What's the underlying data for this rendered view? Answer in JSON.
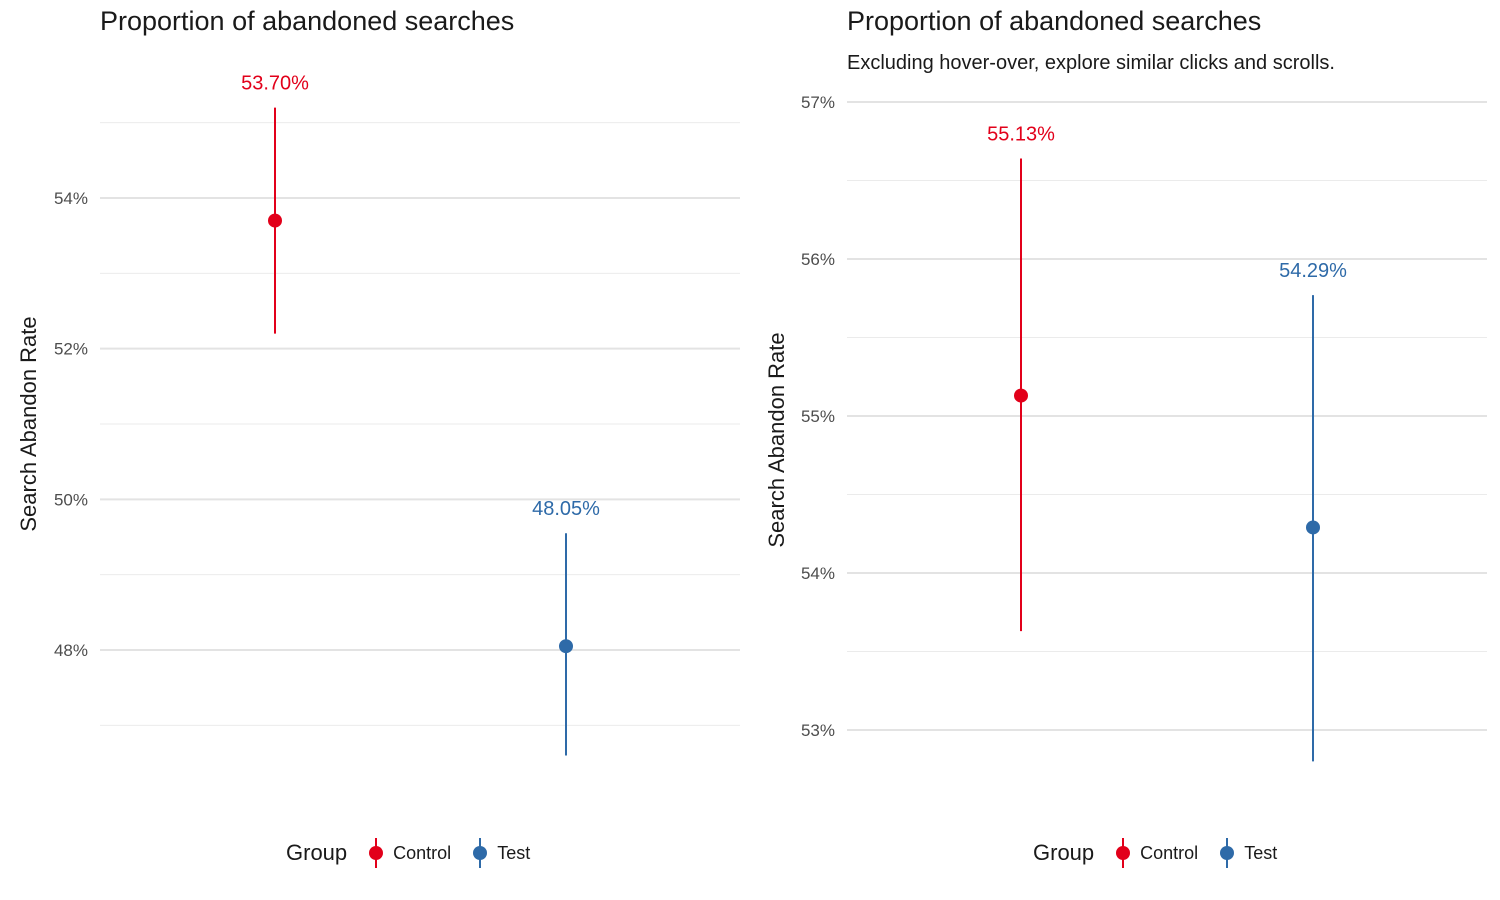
{
  "chart_data": [
    {
      "type": "scatter",
      "title": "Proportion of abandoned searches",
      "subtitle": "",
      "xlabel": "",
      "ylabel": "Search Abandon Rate",
      "ylim": [
        46.6,
        55.2
      ],
      "y_ticks": [
        "48%",
        "50%",
        "52%",
        "54%"
      ],
      "y_tick_values": [
        48,
        50,
        52,
        54
      ],
      "grid": true,
      "legend_title": "Group",
      "legend_position": "bottom",
      "categories": [
        "Control",
        "Test"
      ],
      "series": [
        {
          "name": "Control",
          "color": "#e2001a",
          "value": 53.7,
          "ci": [
            52.2,
            55.2
          ],
          "label": "53.70%"
        },
        {
          "name": "Test",
          "color": "#2e6aa8",
          "value": 48.05,
          "ci": [
            46.6,
            49.55
          ],
          "label": "48.05%"
        }
      ]
    },
    {
      "type": "scatter",
      "title": "Proportion of abandoned searches",
      "subtitle": "Excluding hover-over, explore similar clicks and scrolls.",
      "xlabel": "",
      "ylabel": "Search Abandon Rate",
      "ylim": [
        52.8,
        57.0
      ],
      "y_ticks": [
        "53%",
        "54%",
        "55%",
        "56%",
        "57%"
      ],
      "y_tick_values": [
        53,
        54,
        55,
        56,
        57
      ],
      "grid": true,
      "legend_title": "Group",
      "legend_position": "bottom",
      "categories": [
        "Control",
        "Test"
      ],
      "series": [
        {
          "name": "Control",
          "color": "#e2001a",
          "value": 55.13,
          "ci": [
            53.63,
            56.64
          ],
          "label": "55.13%"
        },
        {
          "name": "Test",
          "color": "#2e6aa8",
          "value": 54.29,
          "ci": [
            52.8,
            55.77
          ],
          "label": "54.29%"
        }
      ]
    }
  ]
}
